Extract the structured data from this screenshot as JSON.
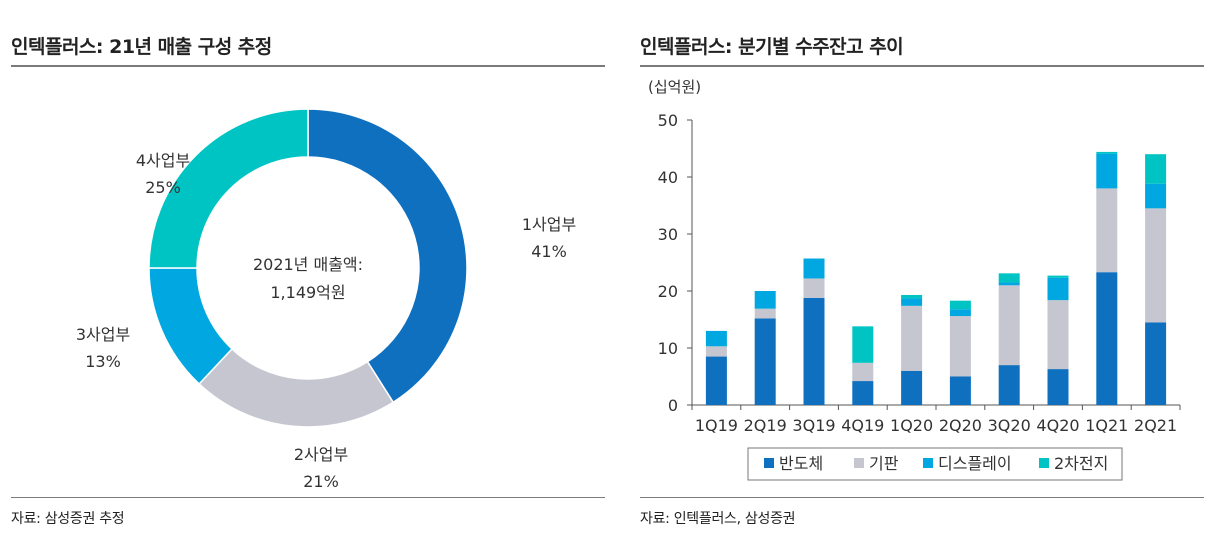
{
  "left_panel": {
    "title": "인텍플러스: 21년 매출 구성 추정",
    "source": "자료: 삼성증권 추정"
  },
  "right_panel": {
    "title": "인텍플러스: 분기별 수주잔고 추이",
    "source": "자료: 인텍플러스, 삼성증권"
  },
  "chart_data": [
    {
      "type": "pie",
      "subtype": "donut",
      "center_label": [
        "2021년 매출액:",
        "1,149억원"
      ],
      "slices": [
        {
          "name": "1사업부",
          "value": 41,
          "label": "41%",
          "color": "#0f70c0"
        },
        {
          "name": "2사업부",
          "value": 21,
          "label": "21%",
          "color": "#c5c6d0"
        },
        {
          "name": "3사업부",
          "value": 13,
          "label": "13%",
          "color": "#00a7e0"
        },
        {
          "name": "4사업부",
          "value": 25,
          "label": "25%",
          "color": "#00c4c4"
        }
      ]
    },
    {
      "type": "bar",
      "stacked": true,
      "unit_label": "(십억원)",
      "categories": [
        "1Q19",
        "2Q19",
        "3Q19",
        "4Q19",
        "1Q20",
        "2Q20",
        "3Q20",
        "4Q20",
        "1Q21",
        "2Q21"
      ],
      "ylim": [
        0,
        50
      ],
      "yticks": [
        0,
        10,
        20,
        30,
        40,
        50
      ],
      "series": [
        {
          "name": "반도체",
          "color": "#0f70c0",
          "values": [
            8.5,
            15.2,
            18.8,
            4.2,
            6.0,
            5.0,
            7.0,
            6.3,
            23.3,
            14.5
          ]
        },
        {
          "name": "기판",
          "color": "#c5c6d0",
          "values": [
            1.8,
            1.7,
            3.4,
            3.2,
            11.4,
            10.6,
            14.0,
            12.1,
            14.7,
            20.0
          ]
        },
        {
          "name": "디스플레이",
          "color": "#00a7e0",
          "values": [
            2.7,
            3.1,
            3.5,
            0.0,
            1.3,
            1.2,
            0.5,
            3.9,
            6.1,
            4.3
          ]
        },
        {
          "name": "2차전지",
          "color": "#00c4c4",
          "values": [
            0.0,
            0.0,
            0.0,
            6.4,
            0.6,
            1.5,
            1.6,
            0.4,
            0.3,
            5.2
          ]
        }
      ]
    }
  ]
}
